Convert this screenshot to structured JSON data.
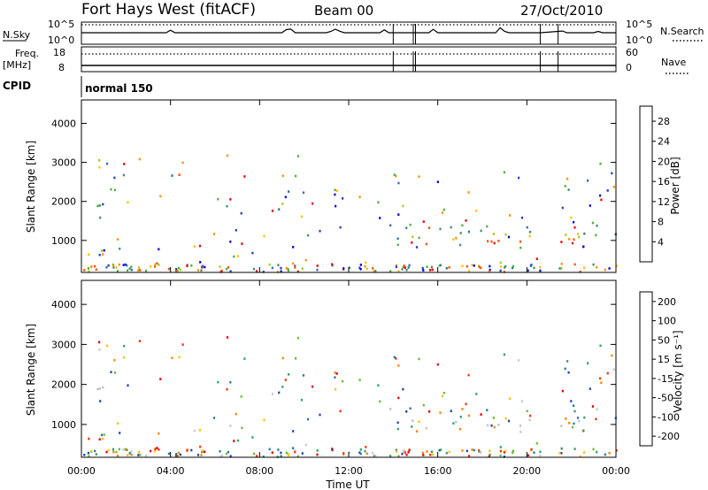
{
  "header": {
    "station": "Fort Hays West (fitACF)",
    "beam": "Beam 00",
    "date": "27/Oct/2010"
  },
  "top_panels": {
    "nsky_label": "N.Sky",
    "nsearch_label": "N.Search",
    "freq_label_1": "Freq.",
    "freq_label_2": "[MHz]",
    "nave_label": "Nave",
    "cpid_label": "CPID",
    "cpid_value": "normal 150",
    "noise_left_ticks": [
      "10^5",
      "10^0"
    ],
    "noise_right_ticks": [
      "10^5",
      "10^0"
    ],
    "freq_ticks": [
      "18",
      "8"
    ],
    "nave_ticks": [
      "60",
      "0"
    ]
  },
  "chart_data": [
    {
      "type": "heatmap",
      "name": "power",
      "ylabel": "Slant Range [km]",
      "y_ticks": [
        1000,
        2000,
        3000,
        4000
      ],
      "ylim": [
        180,
        4600
      ],
      "colorbar": {
        "label": "Power [dB]",
        "ticks": [
          4,
          8,
          12,
          16,
          20,
          24,
          28
        ],
        "range": [
          0,
          31
        ],
        "colors": [
          "#0000e6",
          "#1f3fb4",
          "#2f6f9a",
          "#3c8e6c",
          "#4caf3a",
          "#a8c820",
          "#ffc000",
          "#ff9000",
          "#ff5000",
          "#ee0000"
        ]
      },
      "echo_regions": [
        {
          "t0": 0.1,
          "t1": 1.3,
          "r0": 1000,
          "r1": 2500,
          "level": "mixed"
        },
        {
          "t0": 3.9,
          "t1": 5.0,
          "r0": 2500,
          "r1": 2850,
          "level": "low"
        },
        {
          "t0": 7.6,
          "t1": 10.8,
          "r0": 1950,
          "r1": 2350,
          "level": "low"
        },
        {
          "t0": 11.2,
          "t1": 12.6,
          "r0": 2100,
          "r1": 2900,
          "level": "low"
        },
        {
          "t0": 12.6,
          "t1": 14.2,
          "r0": 1000,
          "r1": 2400,
          "level": "mixed"
        },
        {
          "t0": 14.0,
          "t1": 20.4,
          "r0": 850,
          "r1": 1400,
          "level": "high"
        },
        {
          "t0": 21.4,
          "t1": 24.0,
          "r0": 850,
          "r1": 1400,
          "level": "high"
        }
      ]
    },
    {
      "type": "heatmap",
      "name": "velocity",
      "xlabel": "Time UT",
      "ylabel": "Slant Range [km]",
      "x_ticks": [
        "00:00",
        "04:00",
        "08:00",
        "12:00",
        "16:00",
        "20:00",
        "00:00"
      ],
      "y_ticks": [
        1000,
        2000,
        3000,
        4000
      ],
      "ylim": [
        180,
        4600
      ],
      "colorbar": {
        "label": "Velocity [m s⁻¹]",
        "ticks": [
          200,
          100,
          50,
          15,
          -15,
          -50,
          -100,
          -200
        ],
        "colors": [
          "#2040b0",
          "#2a7a9a",
          "#30a060",
          "#60c030",
          "#c8c8c8",
          "#ffc000",
          "#ff8000",
          "#ff3000",
          "#e00000"
        ]
      },
      "ground_scatter_color": "#c0c0c0"
    }
  ]
}
